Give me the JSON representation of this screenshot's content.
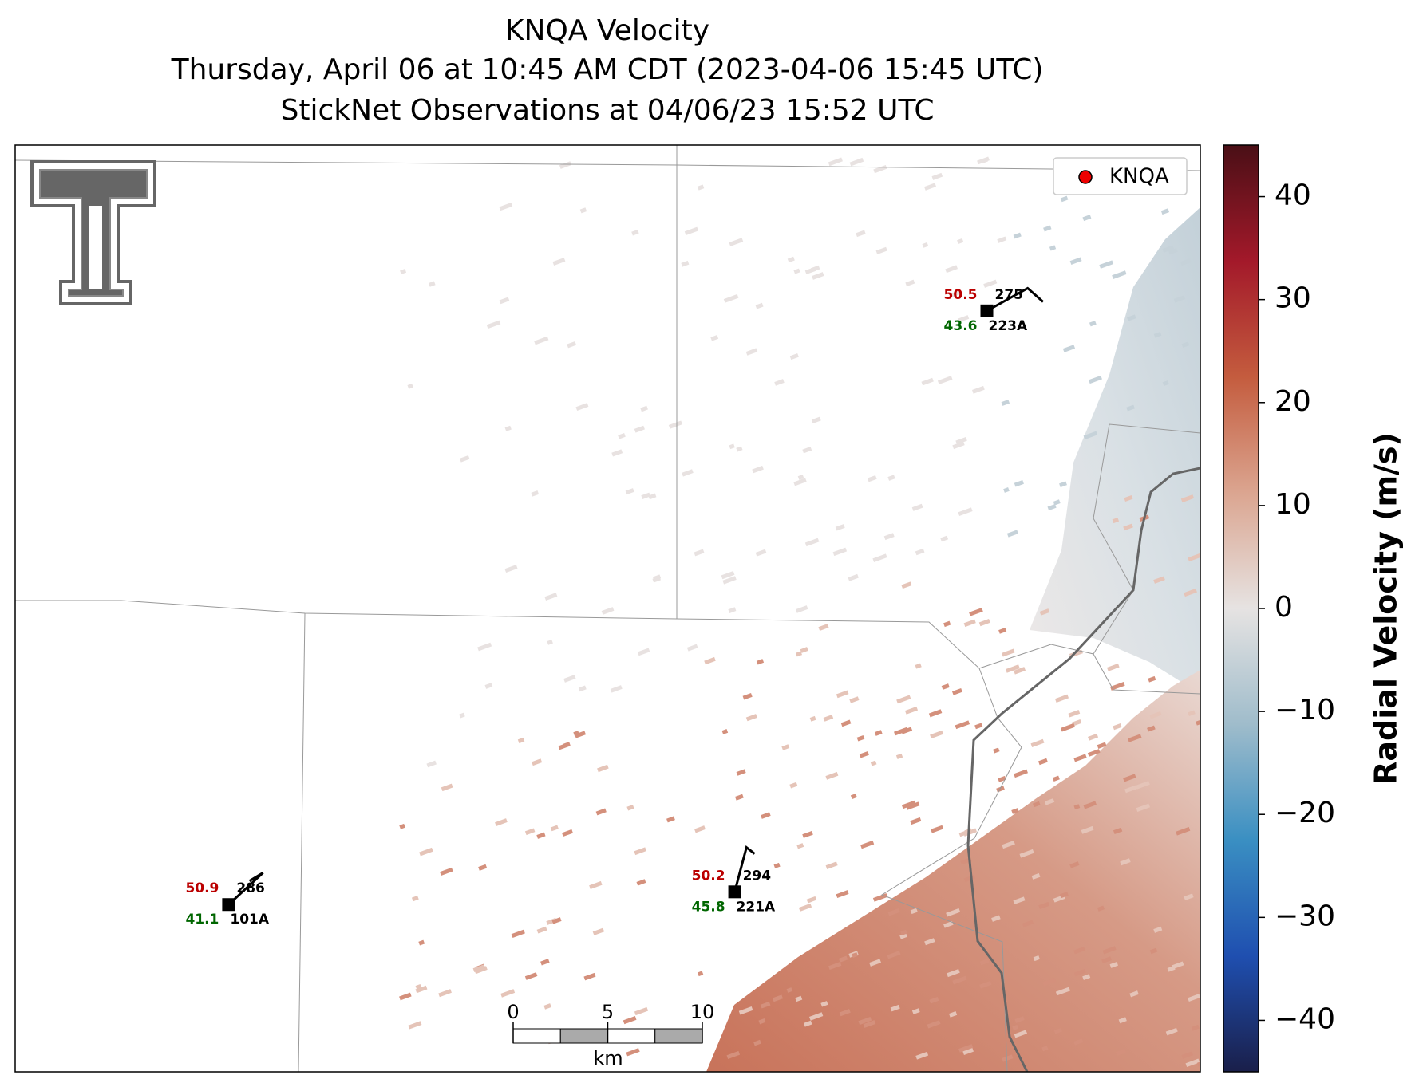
{
  "title": [
    "KNQA Velocity",
    "Thursday, April 06 at 10:45 AM CDT (2023-04-06 15:45 UTC)",
    "StickNet Observations at 04/06/23 15:52 UTC"
  ],
  "legend": "KNQA",
  "colorbar": {
    "label": "Radial Velocity (m/s)",
    "lim": [
      -45,
      45
    ],
    "ticks": [
      {
        "value": -40,
        "label": "−40"
      },
      {
        "value": -30,
        "label": "−30"
      },
      {
        "value": -20,
        "label": "−20"
      },
      {
        "value": -10,
        "label": "−10"
      },
      0,
      10,
      20,
      30,
      40
    ],
    "colors": [
      "#1a1f4a",
      "#1f4fb0",
      "#3a8fc2",
      "#9fbccb",
      "#e6e3e2",
      "#dba590",
      "#c45c3e",
      "#a3192a",
      "#4a0f16"
    ]
  },
  "stations": [
    {
      "id": "223A",
      "temperature": 50.5,
      "dewpoint": 43.6,
      "number": 275
    },
    {
      "id": "101A",
      "temperature": 50.9,
      "dewpoint": 41.1,
      "number": 286
    },
    {
      "id": "221A",
      "temperature": 50.2,
      "dewpoint": 45.8,
      "number": 294
    }
  ],
  "scale_bar": {
    "ticks": [
      0,
      5,
      10
    ],
    "unit": "km"
  }
}
